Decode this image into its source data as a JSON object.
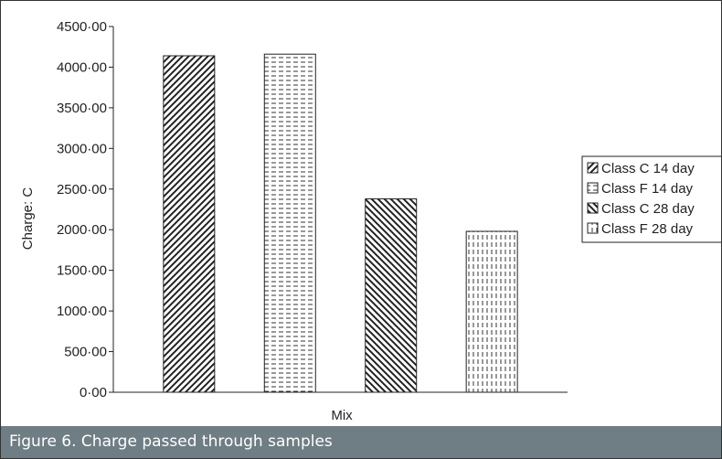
{
  "chart_data": {
    "type": "bar",
    "xlabel": "Mix",
    "ylabel": "Charge: C",
    "ylim": [
      0,
      4500
    ],
    "yticks": [
      0,
      500,
      1000,
      1500,
      2000,
      2500,
      3000,
      3500,
      4000,
      4500
    ],
    "ytick_labels": [
      "0·00",
      "500·00",
      "1000·00",
      "1500·00",
      "2000·00",
      "2500·00",
      "3000·00",
      "3500·00",
      "4000·00",
      "4500·00"
    ],
    "grid": false,
    "legend_position": "right",
    "series": [
      {
        "name": "Class C 14 day",
        "value": 4140,
        "pattern": "diagonal-right"
      },
      {
        "name": "Class F 14 day",
        "value": 4160,
        "pattern": "horizontal-dash"
      },
      {
        "name": "Class C 28 day",
        "value": 2380,
        "pattern": "diagonal-left"
      },
      {
        "name": "Class F 28 day",
        "value": 1980,
        "pattern": "vertical-dash"
      }
    ]
  },
  "caption": "Figure 6. Charge passed through samples",
  "colors": {
    "caption_background": "#6f7d84",
    "ink": "#222222"
  }
}
